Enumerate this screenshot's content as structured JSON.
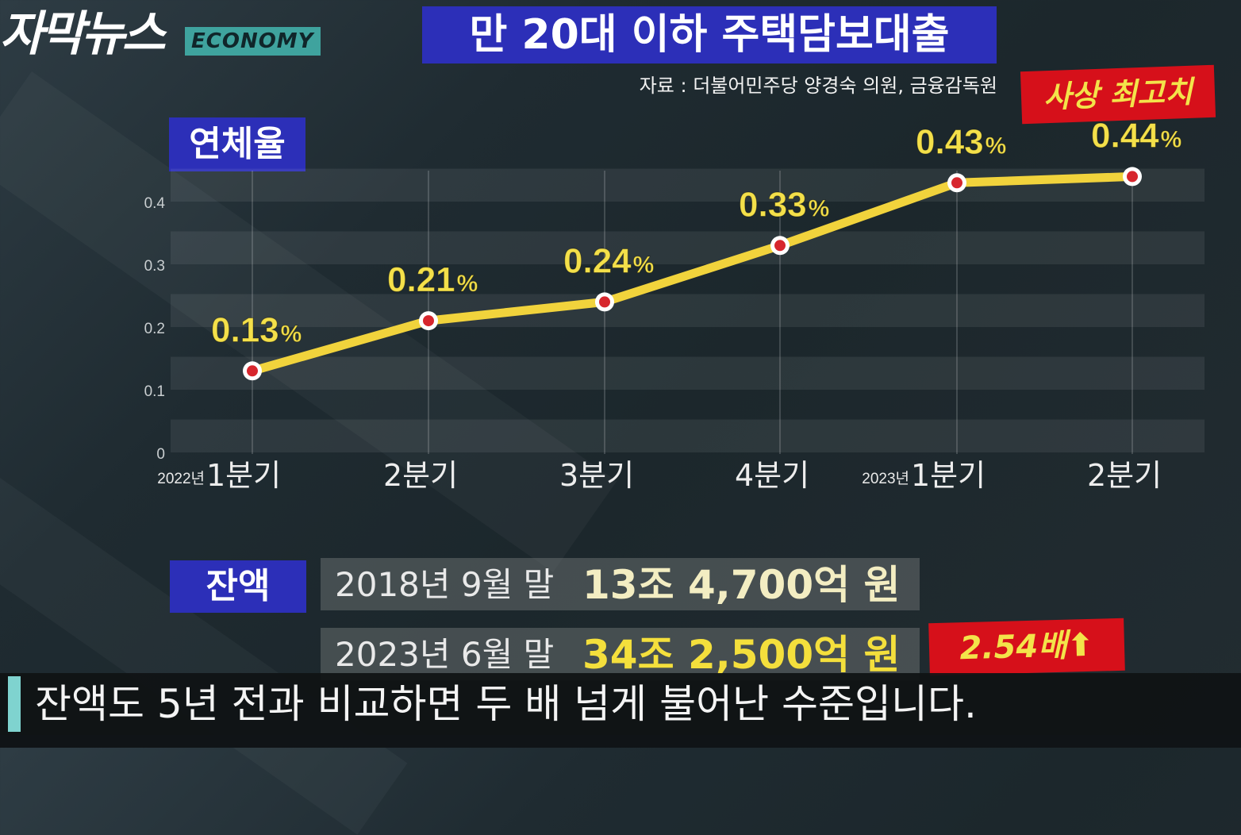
{
  "logo": {
    "main": "자막뉴스",
    "tag": "ECONOMY"
  },
  "title": "만 20대 이하 주택담보대출",
  "source": "자료 : 더불어민주당 양경숙 의원, 금융감독원",
  "record_badge": "사상 최고치",
  "chart_label": "연체율",
  "chart_data": {
    "type": "line",
    "title": "연체율",
    "categories": [
      "1분기",
      "2분기",
      "3분기",
      "4분기",
      "1분기",
      "2분기"
    ],
    "year_labels": [
      "2022년",
      "",
      "",
      "",
      "2023년",
      ""
    ],
    "values": [
      0.13,
      0.21,
      0.24,
      0.33,
      0.43,
      0.44
    ],
    "value_labels": [
      "0.13",
      "0.21",
      "0.24",
      "0.33",
      "0.43",
      "0.44"
    ],
    "unit": "%",
    "yticks": [
      "0",
      "0.1",
      "0.2",
      "0.3",
      "0.4"
    ],
    "ylim": [
      0,
      0.45
    ],
    "line_color": "#f1d33c",
    "marker_color": "#d7262d",
    "grid": true
  },
  "balance": {
    "label": "잔액",
    "rows": [
      {
        "date": "2018년 9월 말",
        "amount": "13조 4,700억 원"
      },
      {
        "date": "2023년 6월 말",
        "amount": "34조 2,500억 원"
      }
    ],
    "ratio": "2.54배",
    "ratio_arrow": "⬆"
  },
  "subtitle": "잔액도 5년 전과 비교하면 두 배 넘게 불어난 수준입니다."
}
